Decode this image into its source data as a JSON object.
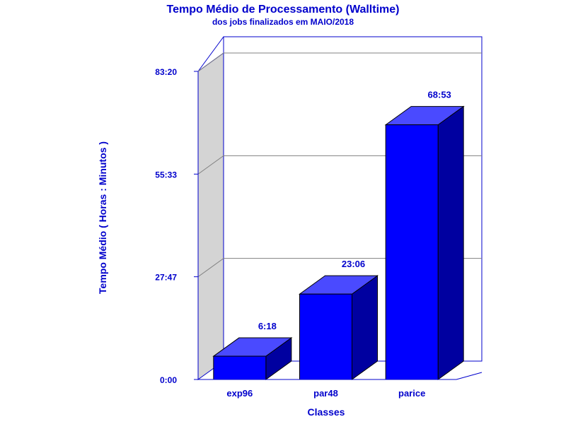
{
  "chart_data": {
    "type": "bar",
    "title": "Tempo Médio de Processamento (Walltime)",
    "subtitle": "dos jobs finalizados em MAIO/2018",
    "xlabel": "Classes",
    "ylabel": "Tempo Médio ( Horas : Minutos )",
    "categories": [
      "exp96",
      "par48",
      "parice"
    ],
    "values": [
      6.3,
      23.1,
      68.883
    ],
    "value_labels": [
      "6:18",
      "23:06",
      "68:53"
    ],
    "y_ticks": [
      0,
      27.783,
      55.55,
      83.333
    ],
    "y_tick_labels": [
      "0:00",
      "27:47",
      "55:33",
      "83:20"
    ],
    "ylim": [
      0,
      83.333
    ],
    "grid": true,
    "three_d": true
  },
  "colors": {
    "text": "#0000cc",
    "frame": "#0000cc",
    "bar_front": "#0000ff",
    "bar_top": "#4a4aff",
    "bar_side": "#0000a0",
    "back_wall": "#ffffff",
    "side_wall": "#d4d4d4",
    "grid": "#808080"
  }
}
